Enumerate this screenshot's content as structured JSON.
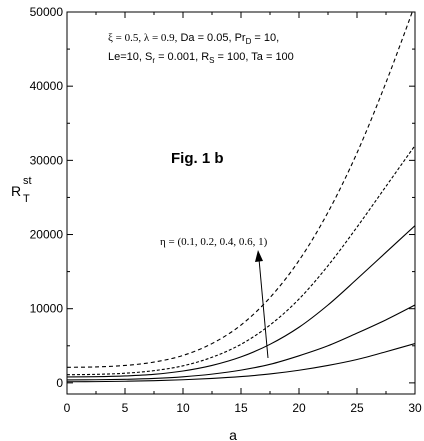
{
  "chart_data": {
    "type": "line",
    "title": "",
    "xlabel": "a",
    "ylabel_main": "R",
    "ylabel_sup": "st",
    "ylabel_sub": "T",
    "xlim": [
      0,
      30
    ],
    "ylim": [
      -1500,
      50000
    ],
    "xticks": [
      "0",
      "5",
      "10",
      "15",
      "20",
      "25",
      "30"
    ],
    "yticks": [
      "0",
      "10000",
      "20000",
      "30000",
      "40000",
      "50000"
    ],
    "grid": false,
    "legend": "none",
    "x": [
      0,
      2.5,
      5,
      7.5,
      10,
      12.5,
      15,
      17.5,
      20,
      22.5,
      25,
      27.5,
      30
    ],
    "series": [
      {
        "values": [
          2100,
          2150,
          2350,
          2800,
          3700,
          5300,
          7800,
          11500,
          16500,
          23000,
          31000,
          40500,
          51000
        ]
      },
      {
        "values": [
          1100,
          1150,
          1300,
          1650,
          2300,
          3450,
          5200,
          7800,
          11300,
          15800,
          21000,
          26500,
          32000
        ]
      },
      {
        "values": [
          800,
          830,
          930,
          1150,
          1600,
          2350,
          3500,
          5200,
          7500,
          10500,
          14000,
          17600,
          21200
        ]
      },
      {
        "values": [
          400,
          420,
          480,
          600,
          820,
          1180,
          1720,
          2500,
          3650,
          5000,
          6700,
          8500,
          10500
        ]
      },
      {
        "values": [
          150,
          170,
          220,
          300,
          420,
          600,
          850,
          1200,
          1700,
          2350,
          3150,
          4200,
          5300
        ]
      }
    ],
    "params_line1": "ξ = 0.5,  λ = 0.9,  Da = 0.05, Pr_D = 10,",
    "params_line2": "Le=10,  S_r = 0.001, R_S = 100, Ta = 100",
    "fig_label": "Fig. 1 b",
    "eta_label": "η = (0.1,  0.2,  0.4, 0.6, 1)"
  }
}
